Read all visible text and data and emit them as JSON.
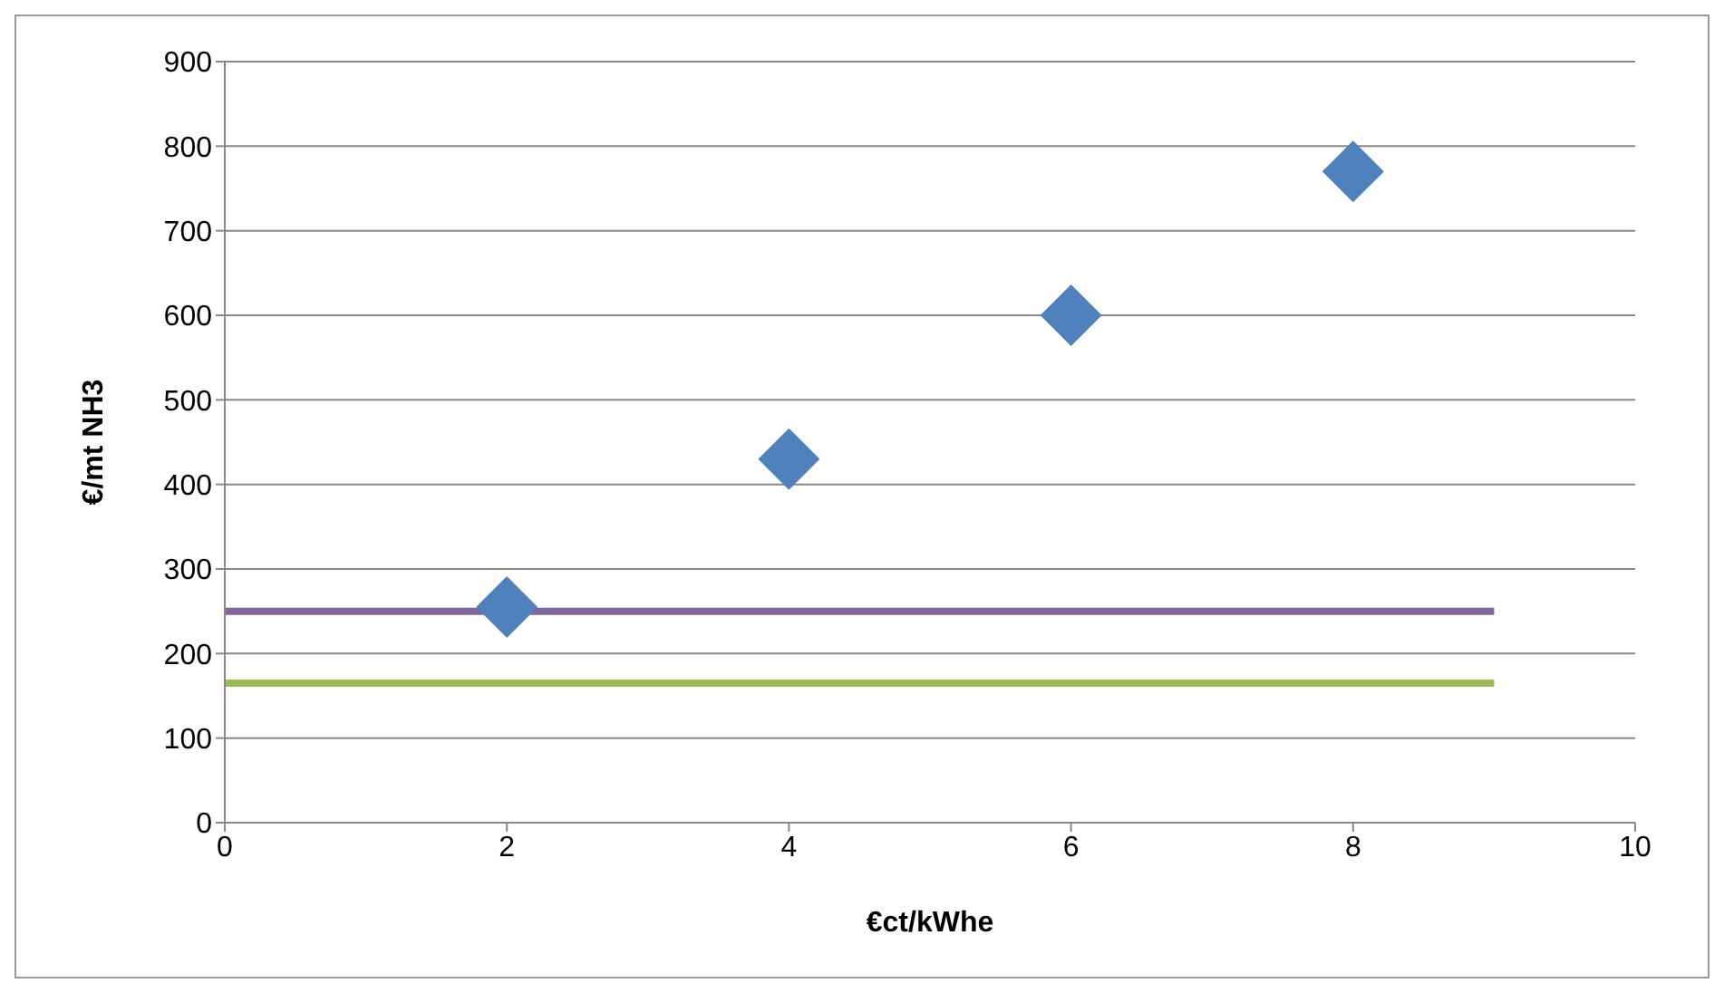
{
  "chart_data": {
    "type": "scatter",
    "xlabel": "€ct/kWhe",
    "ylabel": "€/mt NH3",
    "xlim": [
      0,
      10
    ],
    "xticks": [
      0,
      2,
      4,
      6,
      8,
      10
    ],
    "ylim": [
      0,
      900
    ],
    "yticks": [
      0,
      100,
      200,
      300,
      400,
      500,
      600,
      700,
      800,
      900
    ],
    "grid": "y",
    "legend": false,
    "series": [
      {
        "type": "scatter",
        "color": "#4f81bd",
        "marker": "diamond",
        "x": [
          2,
          4,
          6,
          8
        ],
        "values": [
          255,
          430,
          600,
          770
        ]
      },
      {
        "type": "line",
        "color": "#8064a2",
        "marker": "none",
        "line_style": "solid",
        "x": [
          0,
          9
        ],
        "values": [
          250,
          250
        ]
      },
      {
        "type": "line",
        "color": "#9bbb59",
        "marker": "none",
        "line_style": "solid",
        "x": [
          0,
          9
        ],
        "values": [
          165,
          165
        ]
      }
    ]
  }
}
